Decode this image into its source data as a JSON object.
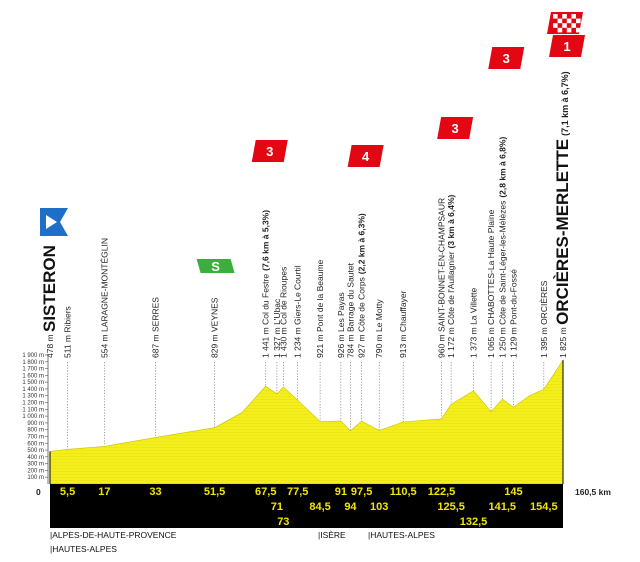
{
  "chart_data": {
    "type": "area",
    "title": "",
    "xlabel": "",
    "ylabel": "",
    "start_km_label": "0",
    "end_km_label": "160,5 km",
    "ylim": [
      100,
      1900
    ],
    "y_ticks": [
      "1 900 m",
      "1 800 m",
      "1 700 m",
      "1 600 m",
      "1 500 m",
      "1 400 m",
      "1 300 m",
      "1 200 m",
      "1 100 m",
      "1 000 m",
      "900 m",
      "800 m",
      "700 m",
      "600 m",
      "500 m",
      "400 m",
      "300 m",
      "200 m",
      "100 m"
    ],
    "elevation": [
      {
        "km": 0,
        "alt": 478
      },
      {
        "km": 5.5,
        "alt": 511
      },
      {
        "km": 17,
        "alt": 554
      },
      {
        "km": 33,
        "alt": 687
      },
      {
        "km": 51.5,
        "alt": 829
      },
      {
        "km": 60,
        "alt": 1050
      },
      {
        "km": 67.5,
        "alt": 1441
      },
      {
        "km": 71,
        "alt": 1327
      },
      {
        "km": 73,
        "alt": 1430
      },
      {
        "km": 77.5,
        "alt": 1234
      },
      {
        "km": 84.5,
        "alt": 921
      },
      {
        "km": 91,
        "alt": 926
      },
      {
        "km": 94,
        "alt": 784
      },
      {
        "km": 97.5,
        "alt": 927
      },
      {
        "km": 103,
        "alt": 790
      },
      {
        "km": 110.5,
        "alt": 913
      },
      {
        "km": 122.5,
        "alt": 960
      },
      {
        "km": 125.5,
        "alt": 1172
      },
      {
        "km": 132.5,
        "alt": 1373
      },
      {
        "km": 138,
        "alt": 1065
      },
      {
        "km": 141.5,
        "alt": 1250
      },
      {
        "km": 145,
        "alt": 1129
      },
      {
        "km": 150,
        "alt": 1300
      },
      {
        "km": 154.5,
        "alt": 1395
      },
      {
        "km": 160.5,
        "alt": 1825
      }
    ],
    "waypoints": [
      {
        "km": 0,
        "label": "478 m SISTERON",
        "town": "SISTERON",
        "km_label": "0"
      },
      {
        "km": 5.5,
        "label": "511 m Ribiers",
        "km_label": "5,5"
      },
      {
        "km": 17,
        "label": "554 m LARAGNE-MONTÉGLIN",
        "km_label": "17"
      },
      {
        "km": 33,
        "label": "687 m SERRES",
        "km_label": "33"
      },
      {
        "km": 51.5,
        "label": "829 m VEYNES",
        "km_label": "51,5"
      },
      {
        "km": 67.5,
        "label": "1 441 m Col du Festre",
        "bold": "(7,6 km à 5,3%)",
        "km_label": "67,5"
      },
      {
        "km": 71,
        "label": "1 327 m L'Ubac",
        "km_label": "71"
      },
      {
        "km": 73,
        "label": "1 430 m Col de Rioupes",
        "km_label": "73"
      },
      {
        "km": 77.5,
        "label": "1 234 m Giers-Le Courtil",
        "km_label": "77,5"
      },
      {
        "km": 84.5,
        "label": "921 m Pont de la Beaume",
        "km_label": "84,5"
      },
      {
        "km": 91,
        "label": "926 m Les Payas",
        "km_label": "91"
      },
      {
        "km": 94,
        "label": "784 m Barrage du Sautet",
        "km_label": "94"
      },
      {
        "km": 97.5,
        "label": "927 m Côte de Corps",
        "bold": "(2,2 km à 6,3%)",
        "km_label": "97,5"
      },
      {
        "km": 103,
        "label": "790 m Le Motty",
        "km_label": "103"
      },
      {
        "km": 110.5,
        "label": "913 m Chauffayer",
        "km_label": "110,5"
      },
      {
        "km": 122.5,
        "label": "960 m SAINT-BONNET-EN-CHAMPSAUR",
        "km_label": "122,5"
      },
      {
        "km": 125.5,
        "label": "1 172 m Côte de l'Aullagnier",
        "bold": "(3 km à 6,4%)",
        "km_label": "125,5"
      },
      {
        "km": 132.5,
        "label": "1 373 m La Villette",
        "km_label": "132,5"
      },
      {
        "km": 138,
        "label": "1 065 m CHABOTTES-La Haute Plaine",
        "km_label": ""
      },
      {
        "km": 141.5,
        "label": "1 250 m Côte de Saint-Léger-les-Mélèzes",
        "bold": "(2,8 km à 6,8%)",
        "km_label": "141,5"
      },
      {
        "km": 145,
        "label": "1 129 m Pont-du-Fossé",
        "km_label": "145"
      },
      {
        "km": 154.5,
        "label": "1 395 m ORCIÈRES",
        "km_label": "154,5"
      },
      {
        "km": 160.5,
        "label": "1 825 m",
        "town": "ORCIÈRES-MERLETTE",
        "bold": "(7,1 km à 6,7%)",
        "km_label": ""
      }
    ],
    "categories": [
      {
        "km": 67.5,
        "cat": "3"
      },
      {
        "km": 97.5,
        "cat": "4"
      },
      {
        "km": 125.5,
        "cat": "3"
      },
      {
        "km": 141.5,
        "cat": "3"
      },
      {
        "km": 160.5,
        "cat": "1"
      }
    ],
    "sprint": {
      "km": 51.5,
      "label": "S"
    },
    "departments": [
      "ALPES-DE-HAUTE-PROVENCE",
      "HAUTES-ALPES",
      "ISÈRE",
      "HAUTES-ALPES"
    ],
    "colors": {
      "profile": "#f5ee1d",
      "axis": "#000000",
      "category": "#e30613",
      "start": "#1e6fc8",
      "sprint": "#3cae3c",
      "km_text": "#f2e600"
    }
  }
}
